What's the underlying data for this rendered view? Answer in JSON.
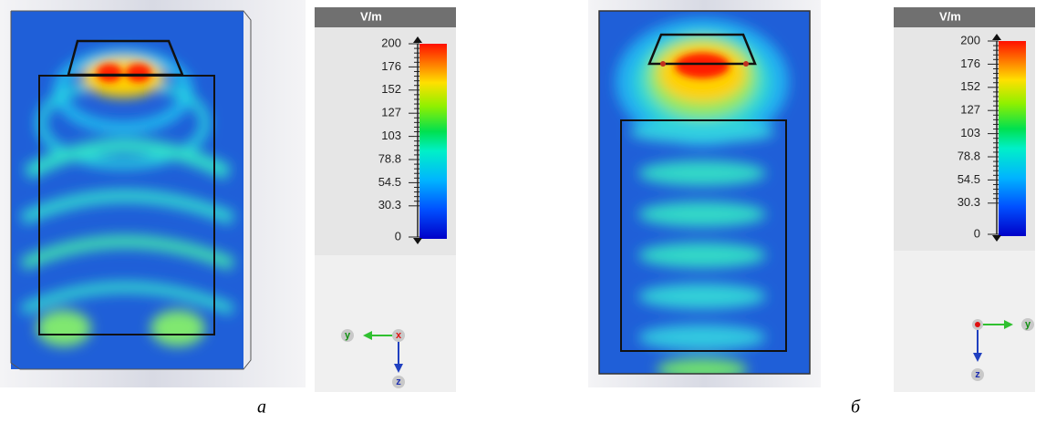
{
  "panels": [
    {
      "unit": "V/m",
      "ticks": [
        "200",
        "176",
        "152",
        "127",
        "103",
        "78.8",
        "54.5",
        "30.3",
        "0"
      ],
      "axes": [
        "y",
        "x",
        "z"
      ],
      "caption": "а"
    },
    {
      "unit": "V/m",
      "ticks": [
        "200",
        "176",
        "152",
        "127",
        "103",
        "78.8",
        "54.5",
        "30.3",
        "0"
      ],
      "axes": [
        "y",
        "z"
      ],
      "caption": "б"
    }
  ]
}
